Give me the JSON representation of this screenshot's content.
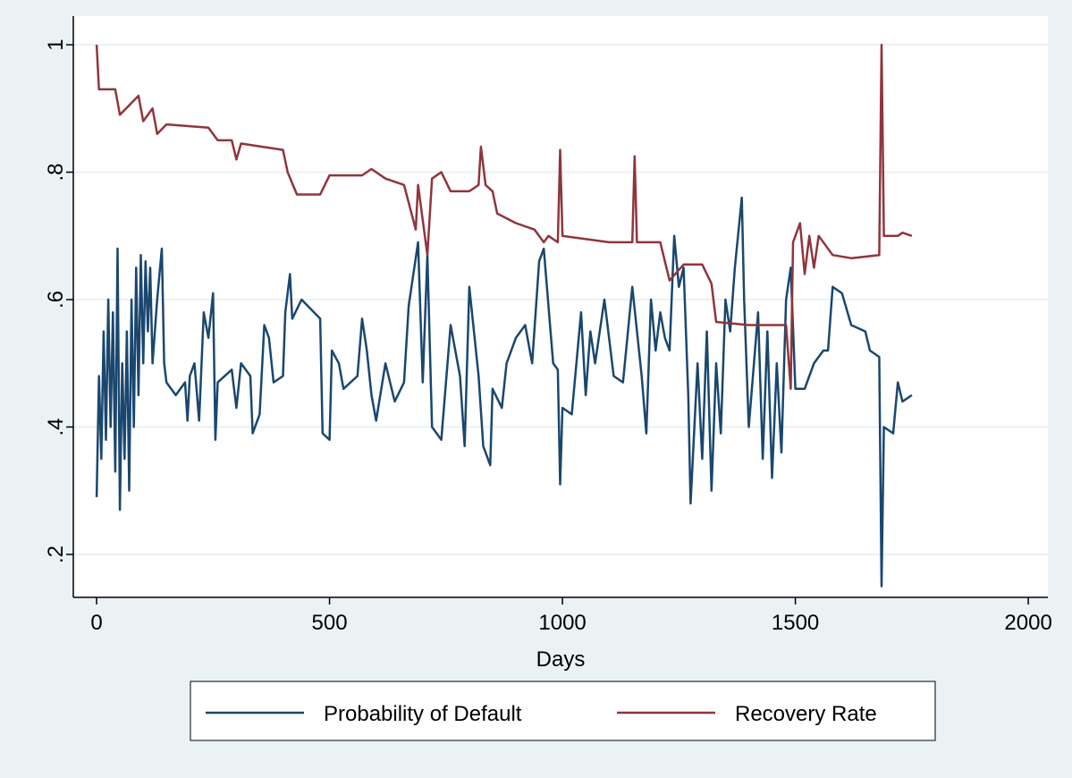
{
  "chart_data": {
    "type": "line",
    "x_label": "Days",
    "xlim": [
      -50,
      2042
    ],
    "xticks": [
      0,
      500,
      1000,
      1500,
      2000
    ],
    "ylim": [
      0.1326,
      1.045
    ],
    "yticks": [
      {
        "value": 0.2,
        "label": ".2"
      },
      {
        "value": 0.4,
        "label": ".4"
      },
      {
        "value": 0.6,
        "label": ".6"
      },
      {
        "value": 0.8,
        "label": ".8"
      },
      1
    ],
    "grid": true,
    "legend": "bottom",
    "series": [
      {
        "name": "Probability of Default",
        "color": "#1a476f",
        "x": [
          0,
          5,
          10,
          15,
          20,
          25,
          30,
          35,
          40,
          45,
          50,
          55,
          60,
          65,
          70,
          75,
          80,
          85,
          90,
          95,
          100,
          105,
          110,
          115,
          120,
          130,
          140,
          145,
          150,
          170,
          190,
          195,
          200,
          210,
          220,
          230,
          240,
          250,
          255,
          260,
          290,
          300,
          310,
          330,
          335,
          350,
          360,
          370,
          380,
          400,
          405,
          415,
          420,
          440,
          480,
          485,
          500,
          505,
          520,
          530,
          560,
          570,
          580,
          590,
          600,
          620,
          640,
          660,
          670,
          690,
          700,
          710,
          720,
          740,
          760,
          780,
          790,
          800,
          820,
          830,
          845,
          850,
          870,
          880,
          900,
          920,
          935,
          950,
          960,
          980,
          990,
          995,
          1000,
          1020,
          1040,
          1050,
          1060,
          1070,
          1090,
          1110,
          1130,
          1150,
          1170,
          1180,
          1190,
          1200,
          1210,
          1220,
          1230,
          1240,
          1250,
          1260,
          1270,
          1275,
          1290,
          1300,
          1310,
          1320,
          1330,
          1340,
          1350,
          1360,
          1370,
          1385,
          1390,
          1400,
          1420,
          1430,
          1440,
          1450,
          1460,
          1470,
          1480,
          1490,
          1500,
          1520,
          1540,
          1560,
          1570,
          1580,
          1600,
          1620,
          1650,
          1660,
          1680,
          1685,
          1690,
          1710,
          1720,
          1730,
          1750
        ],
        "values": [
          0.29,
          0.48,
          0.35,
          0.55,
          0.38,
          0.6,
          0.4,
          0.58,
          0.33,
          0.68,
          0.27,
          0.5,
          0.35,
          0.55,
          0.3,
          0.6,
          0.4,
          0.65,
          0.45,
          0.67,
          0.5,
          0.66,
          0.55,
          0.65,
          0.5,
          0.6,
          0.68,
          0.5,
          0.47,
          0.45,
          0.47,
          0.41,
          0.48,
          0.5,
          0.41,
          0.58,
          0.54,
          0.61,
          0.38,
          0.47,
          0.49,
          0.43,
          0.5,
          0.48,
          0.39,
          0.42,
          0.56,
          0.54,
          0.47,
          0.48,
          0.58,
          0.64,
          0.57,
          0.6,
          0.57,
          0.39,
          0.38,
          0.52,
          0.5,
          0.46,
          0.48,
          0.57,
          0.52,
          0.45,
          0.41,
          0.5,
          0.44,
          0.47,
          0.59,
          0.69,
          0.47,
          0.67,
          0.4,
          0.38,
          0.56,
          0.48,
          0.37,
          0.62,
          0.48,
          0.37,
          0.34,
          0.46,
          0.43,
          0.5,
          0.54,
          0.56,
          0.5,
          0.66,
          0.68,
          0.5,
          0.49,
          0.31,
          0.43,
          0.42,
          0.58,
          0.45,
          0.55,
          0.5,
          0.6,
          0.48,
          0.47,
          0.62,
          0.48,
          0.39,
          0.6,
          0.52,
          0.58,
          0.54,
          0.52,
          0.7,
          0.62,
          0.65,
          0.45,
          0.28,
          0.5,
          0.35,
          0.55,
          0.3,
          0.5,
          0.39,
          0.6,
          0.55,
          0.65,
          0.76,
          0.6,
          0.4,
          0.58,
          0.35,
          0.55,
          0.32,
          0.5,
          0.36,
          0.6,
          0.65,
          0.46,
          0.46,
          0.5,
          0.52,
          0.52,
          0.62,
          0.61,
          0.56,
          0.55,
          0.52,
          0.51,
          0.15,
          0.4,
          0.39,
          0.47,
          0.44,
          0.45
        ]
      },
      {
        "name": "Recovery Rate",
        "color": "#90353b",
        "x": [
          0,
          5,
          40,
          50,
          90,
          100,
          120,
          130,
          150,
          240,
          260,
          290,
          300,
          310,
          400,
          410,
          430,
          480,
          500,
          570,
          590,
          620,
          660,
          685,
          690,
          710,
          720,
          740,
          760,
          800,
          820,
          825,
          835,
          850,
          860,
          900,
          940,
          960,
          970,
          990,
          995,
          1000,
          1100,
          1150,
          1155,
          1160,
          1210,
          1220,
          1230,
          1260,
          1300,
          1320,
          1330,
          1400,
          1480,
          1490,
          1495,
          1510,
          1520,
          1530,
          1540,
          1550,
          1580,
          1620,
          1680,
          1685,
          1690,
          1720,
          1730,
          1750
        ],
        "values": [
          1.0,
          0.93,
          0.93,
          0.89,
          0.92,
          0.88,
          0.9,
          0.86,
          0.875,
          0.87,
          0.85,
          0.85,
          0.82,
          0.845,
          0.835,
          0.8,
          0.765,
          0.765,
          0.795,
          0.795,
          0.805,
          0.79,
          0.78,
          0.71,
          0.78,
          0.67,
          0.79,
          0.8,
          0.77,
          0.77,
          0.78,
          0.84,
          0.78,
          0.77,
          0.735,
          0.72,
          0.71,
          0.69,
          0.7,
          0.69,
          0.835,
          0.7,
          0.69,
          0.69,
          0.825,
          0.69,
          0.69,
          0.66,
          0.63,
          0.655,
          0.655,
          0.625,
          0.565,
          0.56,
          0.56,
          0.46,
          0.69,
          0.72,
          0.64,
          0.7,
          0.65,
          0.7,
          0.67,
          0.665,
          0.67,
          1.0,
          0.7,
          0.7,
          0.705,
          0.7
        ]
      }
    ]
  }
}
